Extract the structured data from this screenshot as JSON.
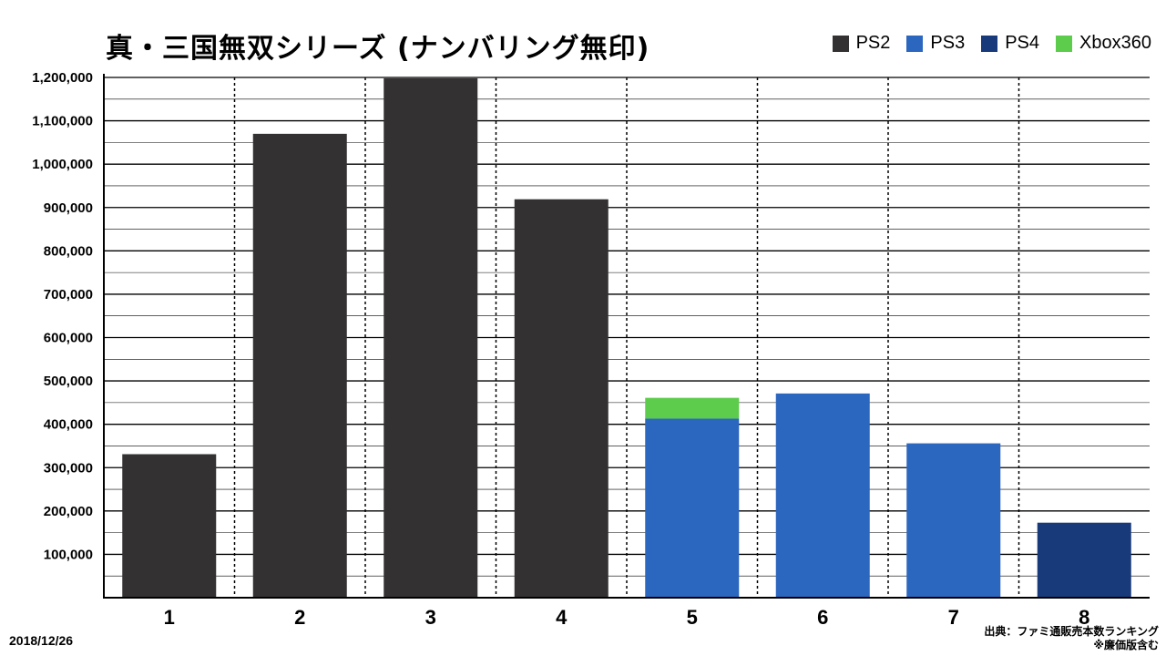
{
  "chart_data": {
    "type": "bar",
    "stacked": true,
    "title": "真・三国無双シリーズ (ナンバリング無印)",
    "categories": [
      "1",
      "2",
      "3",
      "4",
      "5",
      "6",
      "7",
      "8"
    ],
    "series": [
      {
        "name": "PS2",
        "color": "#333132",
        "values": [
          331000,
          1070000,
          1198000,
          919000,
          0,
          0,
          0,
          0
        ]
      },
      {
        "name": "PS3",
        "color": "#2b66bf",
        "values": [
          0,
          0,
          0,
          0,
          413000,
          471000,
          356000,
          0
        ]
      },
      {
        "name": "PS4",
        "color": "#183a7a",
        "values": [
          0,
          0,
          0,
          0,
          0,
          0,
          0,
          173000
        ]
      },
      {
        "name": "Xbox360",
        "color": "#5dcc4c",
        "values": [
          0,
          0,
          0,
          0,
          48000,
          0,
          0,
          0
        ]
      }
    ],
    "ylim": [
      0,
      1200000
    ],
    "yticks": [
      "100,000",
      "200,000",
      "300,000",
      "400,000",
      "500,000",
      "600,000",
      "700,000",
      "800,000",
      "900,000",
      "1,000,000",
      "1,100,000",
      "1,200,000"
    ],
    "grid": true,
    "legend_position": "top-right"
  },
  "footer": {
    "date": "2018/12/26",
    "source_line1": "出典：ファミ通販売本数ランキング",
    "source_line2": "※廉価版含む"
  }
}
